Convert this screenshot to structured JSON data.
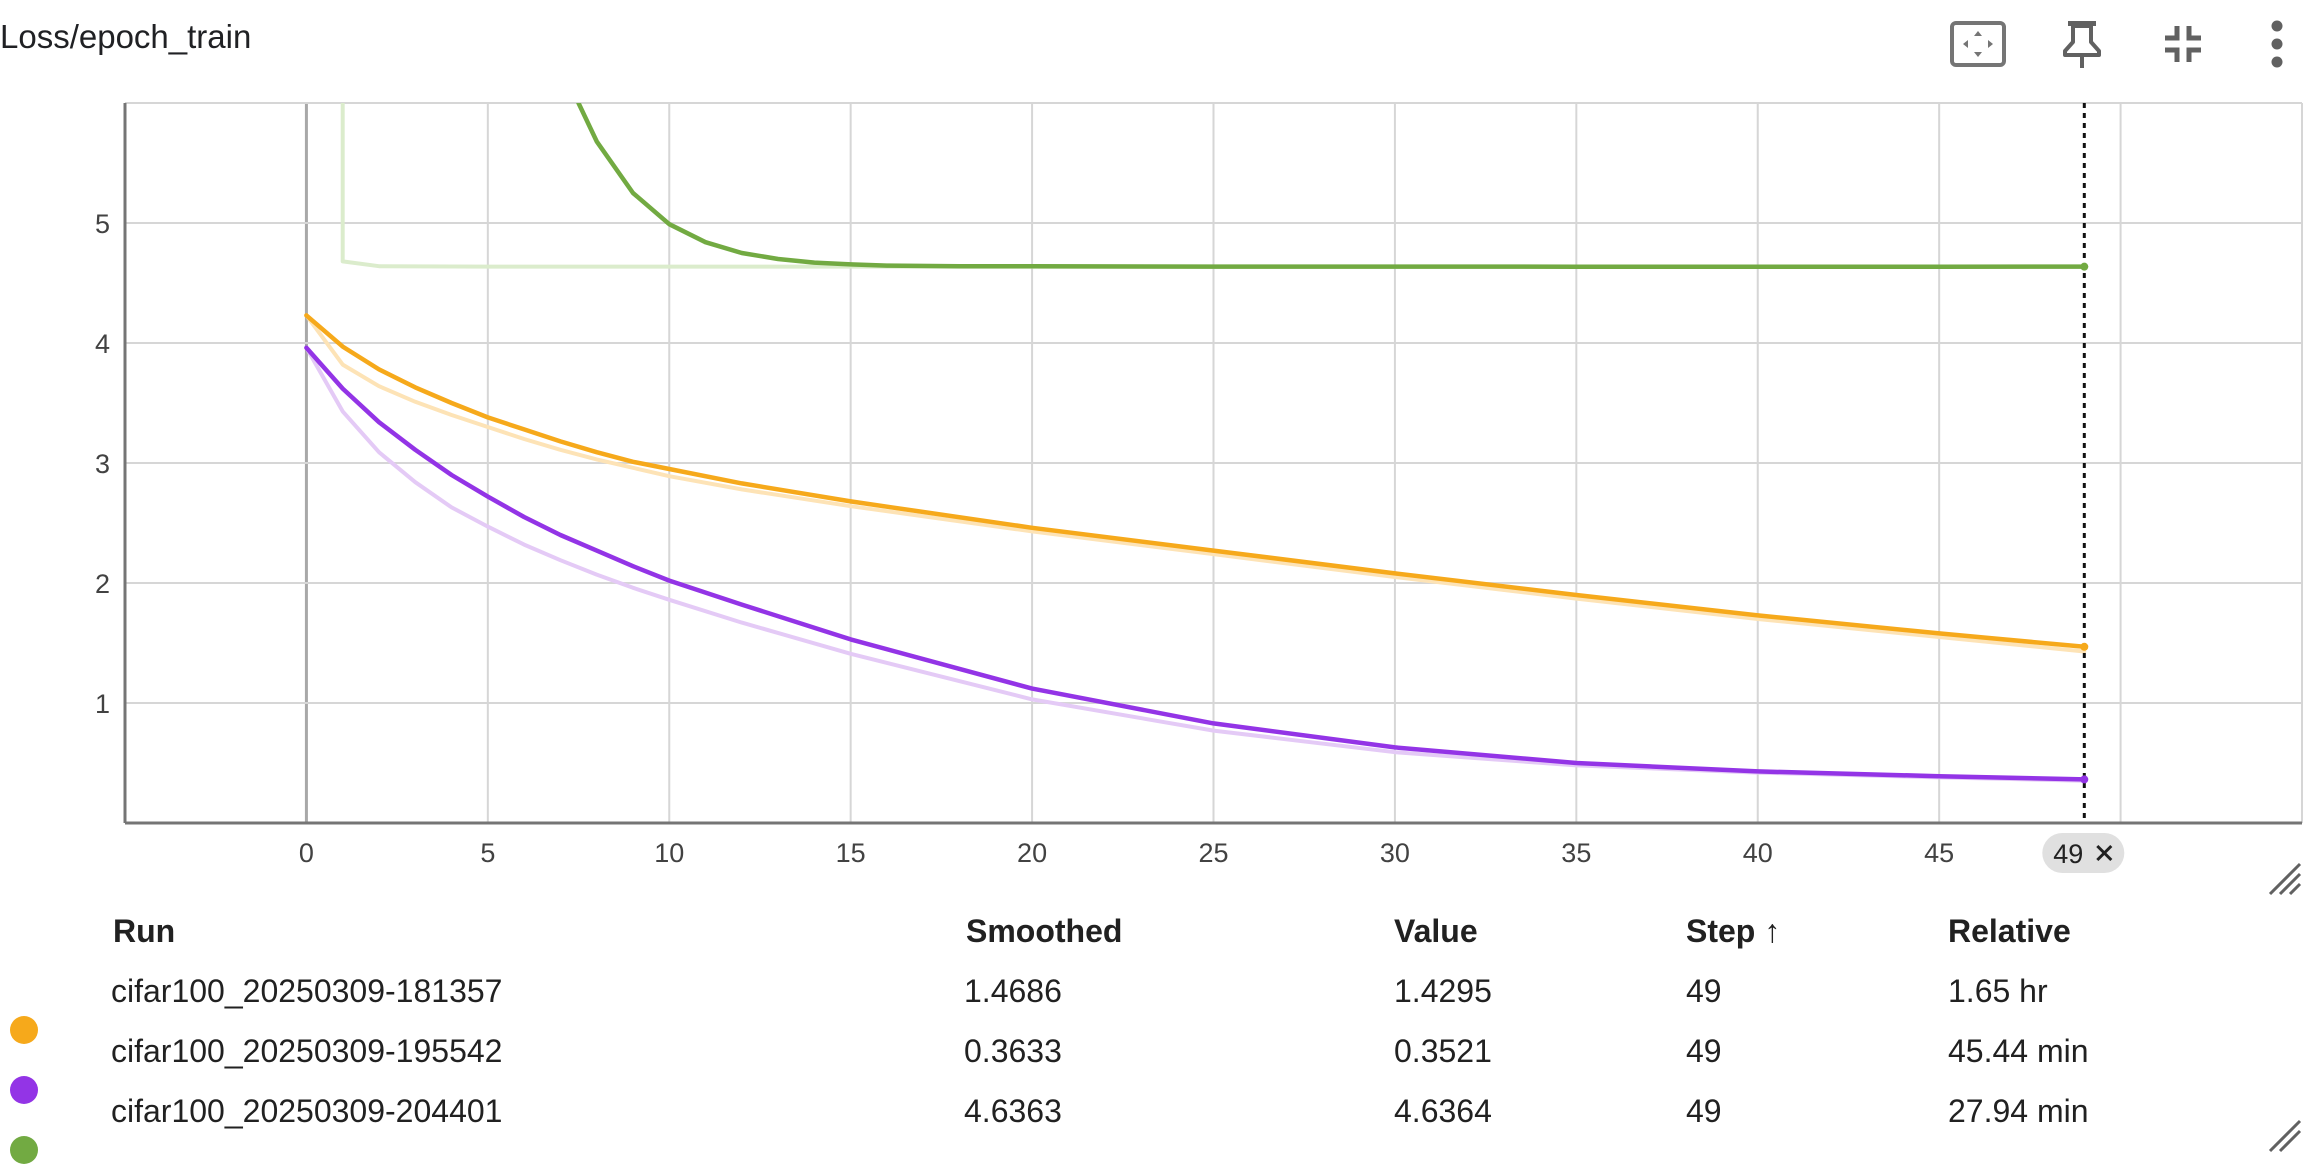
{
  "header": {
    "title": "Loss/epoch_train",
    "icons": [
      "fit-domain-icon",
      "pin-icon",
      "collapse-icon",
      "more-vert-icon"
    ]
  },
  "colors": {
    "orange": "#f6a91b",
    "orange_raw": "#fde3b6",
    "purple": "#9334e6",
    "purple_raw": "#e4caf6",
    "green": "#72aa42",
    "green_raw": "#dbeccc",
    "grid": "#d6d6d6",
    "axis": "#757575"
  },
  "chart_data": {
    "type": "line",
    "title": "Loss/epoch_train",
    "xlabel": "",
    "ylabel": "",
    "xlim": [
      -5,
      55
    ],
    "ylim": [
      0,
      6
    ],
    "xticks": [
      0,
      5,
      10,
      15,
      20,
      25,
      30,
      35,
      40,
      45
    ],
    "yticks": [
      1,
      2,
      3,
      4,
      5
    ],
    "grid": true,
    "hover_step": 49,
    "hover_label": "49",
    "series": [
      {
        "name": "cifar100_20250309-181357",
        "color_key": "orange",
        "x": [
          0,
          1,
          2,
          3,
          4,
          5,
          6,
          7,
          8,
          9,
          10,
          12,
          15,
          20,
          25,
          30,
          35,
          40,
          45,
          49
        ],
        "smoothed": [
          4.23,
          3.97,
          3.78,
          3.63,
          3.5,
          3.38,
          3.28,
          3.18,
          3.09,
          3.01,
          2.95,
          2.83,
          2.68,
          2.46,
          2.27,
          2.08,
          1.9,
          1.73,
          1.58,
          1.4686
        ],
        "raw": [
          4.23,
          3.82,
          3.64,
          3.51,
          3.4,
          3.3,
          3.2,
          3.11,
          3.03,
          2.96,
          2.89,
          2.78,
          2.64,
          2.43,
          2.24,
          2.05,
          1.87,
          1.7,
          1.55,
          1.4295
        ]
      },
      {
        "name": "cifar100_20250309-195542",
        "color_key": "purple",
        "x": [
          0,
          1,
          2,
          3,
          4,
          5,
          6,
          7,
          8,
          9,
          10,
          12,
          15,
          20,
          25,
          30,
          35,
          40,
          45,
          49
        ],
        "smoothed": [
          3.96,
          3.62,
          3.34,
          3.11,
          2.9,
          2.72,
          2.55,
          2.4,
          2.27,
          2.14,
          2.02,
          1.82,
          1.53,
          1.12,
          0.83,
          0.63,
          0.5,
          0.43,
          0.39,
          0.3633
        ],
        "raw": [
          3.96,
          3.43,
          3.09,
          2.84,
          2.63,
          2.47,
          2.32,
          2.19,
          2.07,
          1.96,
          1.86,
          1.67,
          1.41,
          1.03,
          0.77,
          0.59,
          0.48,
          0.42,
          0.38,
          0.3521
        ]
      },
      {
        "name": "cifar100_20250309-204401",
        "color_key": "green",
        "x": [
          7.5,
          8,
          9,
          10,
          11,
          12,
          13,
          14,
          15,
          16,
          18,
          20,
          25,
          30,
          35,
          40,
          45,
          49
        ],
        "smoothed": [
          6.0,
          5.68,
          5.25,
          4.99,
          4.84,
          4.75,
          4.7,
          4.67,
          4.655,
          4.645,
          4.64,
          4.64,
          4.637,
          4.637,
          4.636,
          4.636,
          4.636,
          4.6363
        ],
        "raw_x": [
          1,
          1,
          2,
          5,
          10,
          20,
          30,
          40,
          49
        ],
        "raw": [
          6.0,
          4.68,
          4.64,
          4.637,
          4.637,
          4.636,
          4.636,
          4.636,
          4.6364
        ]
      }
    ]
  },
  "table": {
    "headers": {
      "run": "Run",
      "smoothed": "Smoothed",
      "value": "Value",
      "step": "Step ↑",
      "relative": "Relative"
    },
    "rows": [
      {
        "run": "cifar100_20250309-181357",
        "smoothed": "1.4686",
        "value": "1.4295",
        "step": "49",
        "relative": "1.65 hr",
        "color": "#f6a91b"
      },
      {
        "run": "cifar100_20250309-195542",
        "smoothed": "0.3633",
        "value": "0.3521",
        "step": "49",
        "relative": "45.44 min",
        "color": "#9334e6"
      },
      {
        "run": "cifar100_20250309-204401",
        "smoothed": "4.6363",
        "value": "4.6364",
        "step": "49",
        "relative": "27.94 min",
        "color": "#72aa42"
      }
    ]
  }
}
